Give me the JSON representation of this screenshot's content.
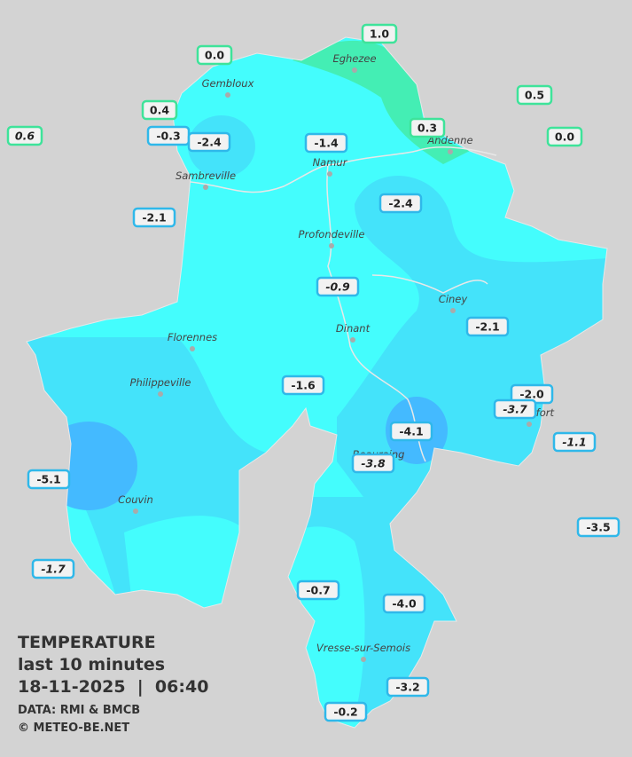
{
  "caption": {
    "title": "TEMPERATURE",
    "subtitle": "last 10 minutes",
    "datetime": "18-11-2025  |  06:40",
    "source": "DATA: RMI & BMCB",
    "credit": "© METEO-BE.NET"
  },
  "towns": [
    "Eghezee",
    "Gembloux",
    "Andenne",
    "Namur",
    "Sambreville",
    "Profondeville",
    "Ciney",
    "Florennes",
    "Dinant",
    "Philippeville",
    "Rochefort",
    "Beauraing",
    "Couvin",
    "Vresse-sur-Semois"
  ],
  "stations": [
    {
      "label": "1.0"
    },
    {
      "label": "0.0"
    },
    {
      "label": "0.5"
    },
    {
      "label": "0.4"
    },
    {
      "label": "0.6",
      "italic": true
    },
    {
      "label": "-0.3"
    },
    {
      "label": "-2.4"
    },
    {
      "label": "-1.4"
    },
    {
      "label": "0.3"
    },
    {
      "label": "0.0"
    },
    {
      "label": "-2.1"
    },
    {
      "label": "-2.4"
    },
    {
      "label": "-0.9",
      "italic": true
    },
    {
      "label": "-2.1"
    },
    {
      "label": "-1.6"
    },
    {
      "label": "-2.0"
    },
    {
      "label": "-3.7",
      "italic": true
    },
    {
      "label": "-4.1"
    },
    {
      "label": "-1.1",
      "italic": true
    },
    {
      "label": "-3.8",
      "italic": true
    },
    {
      "label": "-5.1"
    },
    {
      "label": "-3.5"
    },
    {
      "label": "-1.7",
      "italic": true
    },
    {
      "label": "-0.7"
    },
    {
      "label": "-4.0"
    },
    {
      "label": "-3.2"
    },
    {
      "label": "-0.2"
    }
  ]
}
